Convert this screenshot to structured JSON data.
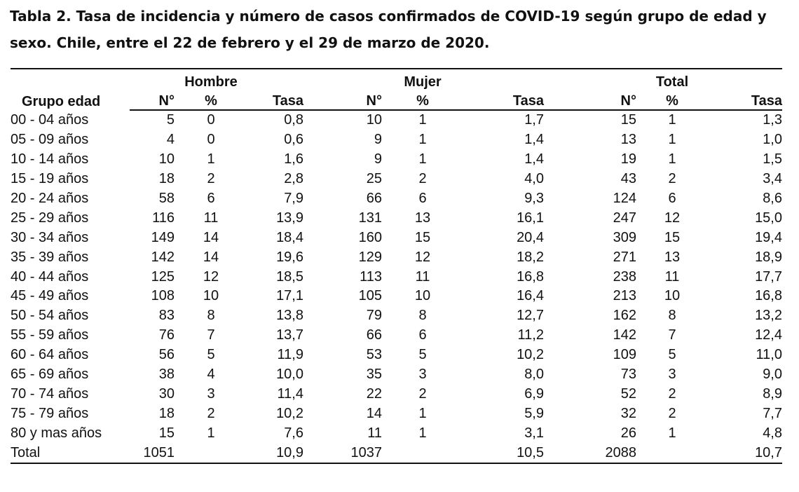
{
  "title": {
    "line1": "Tabla 2. Tasa de incidencia y número de casos confirmados de COVID-19 según grupo de edad y",
    "line2": "sexo.  Chile, entre el 22 de febrero y el 29 de marzo de 2020."
  },
  "header": {
    "row_header": "Grupo edad",
    "groups": [
      "Hombre",
      "Mujer",
      "Total"
    ],
    "subcolumns": [
      "N°",
      "%",
      "Tasa",
      "N°",
      "%",
      "Tasa",
      "N°",
      "%",
      "Tasa"
    ]
  },
  "rows": [
    {
      "label": "00 - 04 años",
      "cells": [
        "5",
        "0",
        "0,8",
        "10",
        "1",
        "1,7",
        "15",
        "1",
        "1,3"
      ]
    },
    {
      "label": "05 - 09 años",
      "cells": [
        "4",
        "0",
        "0,6",
        "9",
        "1",
        "1,4",
        "13",
        "1",
        "1,0"
      ]
    },
    {
      "label": "10 - 14 años",
      "cells": [
        "10",
        "1",
        "1,6",
        "9",
        "1",
        "1,4",
        "19",
        "1",
        "1,5"
      ]
    },
    {
      "label": "15 - 19 años",
      "cells": [
        "18",
        "2",
        "2,8",
        "25",
        "2",
        "4,0",
        "43",
        "2",
        "3,4"
      ]
    },
    {
      "label": "20 - 24 años",
      "cells": [
        "58",
        "6",
        "7,9",
        "66",
        "6",
        "9,3",
        "124",
        "6",
        "8,6"
      ]
    },
    {
      "label": "25 - 29 años",
      "cells": [
        "116",
        "11",
        "13,9",
        "131",
        "13",
        "16,1",
        "247",
        "12",
        "15,0"
      ]
    },
    {
      "label": "30 - 34 años",
      "cells": [
        "149",
        "14",
        "18,4",
        "160",
        "15",
        "20,4",
        "309",
        "15",
        "19,4"
      ]
    },
    {
      "label": "35 - 39 años",
      "cells": [
        "142",
        "14",
        "19,6",
        "129",
        "12",
        "18,2",
        "271",
        "13",
        "18,9"
      ]
    },
    {
      "label": "40 - 44 años",
      "cells": [
        "125",
        "12",
        "18,5",
        "113",
        "11",
        "16,8",
        "238",
        "11",
        "17,7"
      ]
    },
    {
      "label": "45 - 49 años",
      "cells": [
        "108",
        "10",
        "17,1",
        "105",
        "10",
        "16,4",
        "213",
        "10",
        "16,8"
      ]
    },
    {
      "label": "50 - 54 años",
      "cells": [
        "83",
        "8",
        "13,8",
        "79",
        "8",
        "12,7",
        "162",
        "8",
        "13,2"
      ]
    },
    {
      "label": "55 - 59 años",
      "cells": [
        "76",
        "7",
        "13,7",
        "66",
        "6",
        "11,2",
        "142",
        "7",
        "12,4"
      ]
    },
    {
      "label": "60 - 64 años",
      "cells": [
        "56",
        "5",
        "11,9",
        "53",
        "5",
        "10,2",
        "109",
        "5",
        "11,0"
      ]
    },
    {
      "label": "65 - 69 años",
      "cells": [
        "38",
        "4",
        "10,0",
        "35",
        "3",
        "8,0",
        "73",
        "3",
        "9,0"
      ]
    },
    {
      "label": "70 - 74 años",
      "cells": [
        "30",
        "3",
        "11,4",
        "22",
        "2",
        "6,9",
        "52",
        "2",
        "8,9"
      ]
    },
    {
      "label": "75 - 79 años",
      "cells": [
        "18",
        "2",
        "10,2",
        "14",
        "1",
        "5,9",
        "32",
        "2",
        "7,7"
      ]
    },
    {
      "label": "80 y mas años",
      "cells": [
        "15",
        "1",
        "7,6",
        "11",
        "1",
        "3,1",
        "26",
        "1",
        "4,8"
      ]
    },
    {
      "label": "Total",
      "cells": [
        "1051",
        "",
        "10,9",
        "1037",
        "",
        "10,5",
        "2088",
        "",
        "10,7"
      ]
    }
  ]
}
